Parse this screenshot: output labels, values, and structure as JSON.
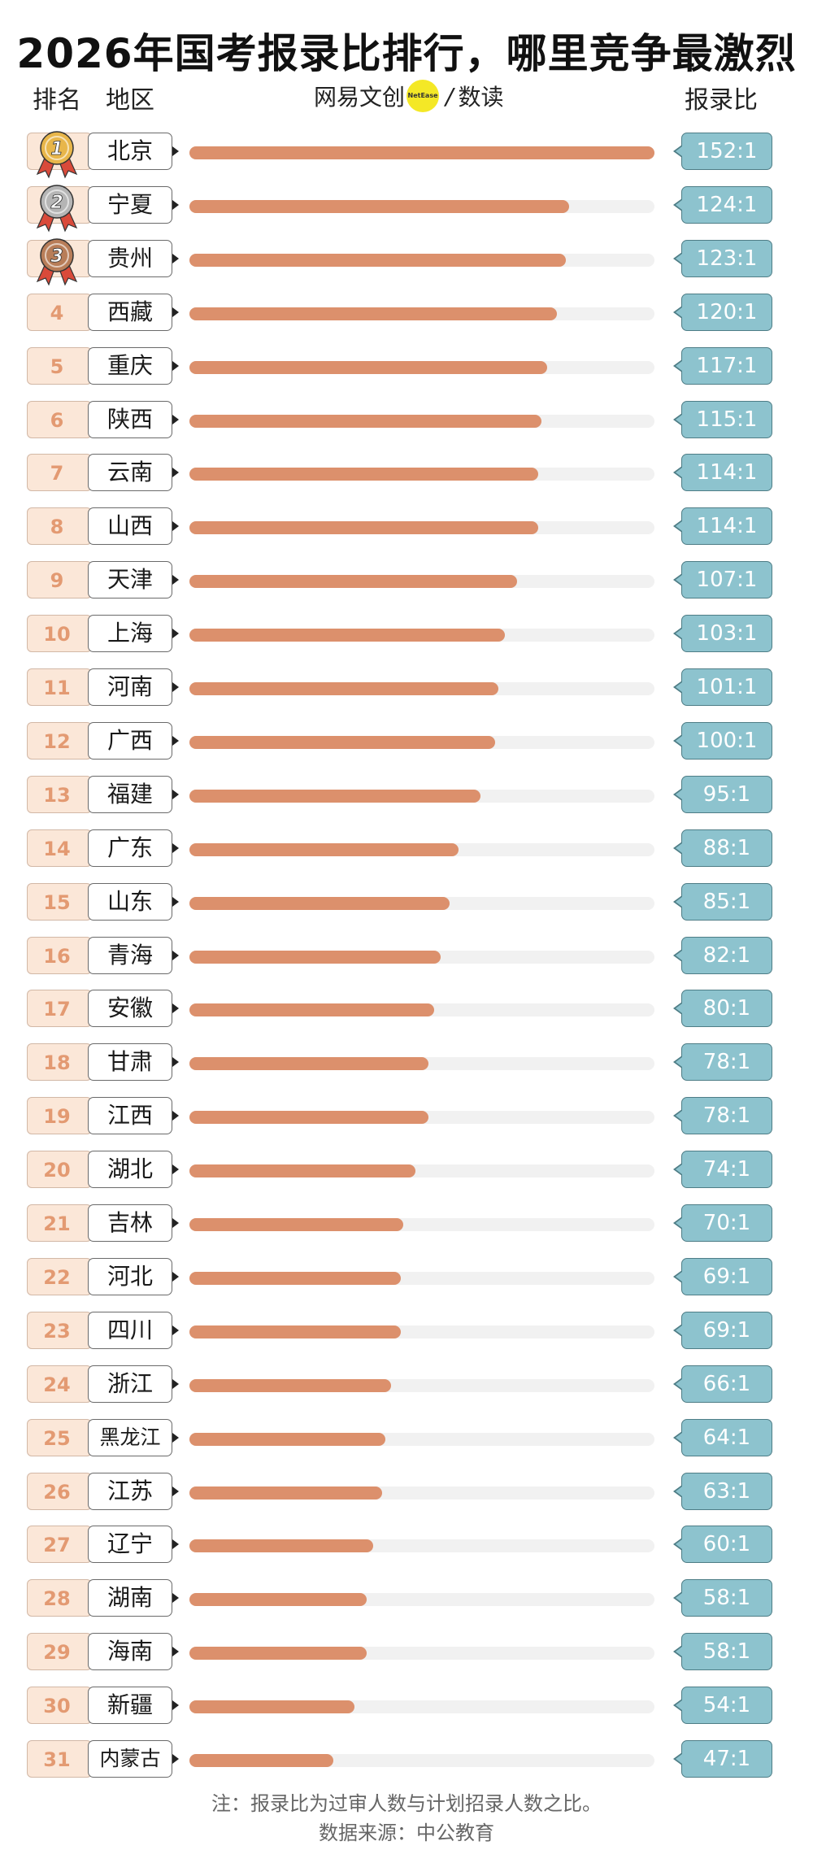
{
  "title": "2026年国考报录比排行，哪里竞争最激烈",
  "headers": {
    "rank": "排名",
    "region": "地区",
    "ratio": "报录比"
  },
  "brand": {
    "left": "网易文创",
    "badge": "NetEase",
    "right": "数读"
  },
  "footnotes": [
    "注：报录比为过审人数与计划招录人数之比。",
    "数据来源：中公教育"
  ],
  "colors": {
    "bar": "#dc906c",
    "track": "#f1f1f1",
    "ratio_box": "#8dc3ce",
    "rank_box": "#fbe7d8",
    "gold": "#e8b64a",
    "silver": "#b5b5b5",
    "bronze": "#b87d58",
    "ribbon": "#d94a3a"
  },
  "medals": [
    "gold-medal-icon",
    "silver-medal-icon",
    "bronze-medal-icon"
  ],
  "chart_data": {
    "type": "bar",
    "orientation": "horizontal",
    "categories": [
      "北京",
      "宁夏",
      "贵州",
      "西藏",
      "重庆",
      "陕西",
      "云南",
      "山西",
      "天津",
      "上海",
      "河南",
      "广西",
      "福建",
      "广东",
      "山东",
      "青海",
      "安徽",
      "甘肃",
      "江西",
      "湖北",
      "吉林",
      "河北",
      "四川",
      "浙江",
      "黑龙江",
      "江苏",
      "辽宁",
      "湖南",
      "海南",
      "新疆",
      "内蒙古"
    ],
    "values": [
      152,
      124,
      123,
      120,
      117,
      115,
      114,
      114,
      107,
      103,
      101,
      100,
      95,
      88,
      85,
      82,
      80,
      78,
      78,
      74,
      70,
      69,
      69,
      66,
      64,
      63,
      60,
      58,
      58,
      54,
      47
    ],
    "labels": [
      "152:1",
      "124:1",
      "123:1",
      "120:1",
      "117:1",
      "115:1",
      "114:1",
      "114:1",
      "107:1",
      "103:1",
      "101:1",
      "100:1",
      "95:1",
      "88:1",
      "85:1",
      "82:1",
      "80:1",
      "78:1",
      "78:1",
      "74:1",
      "70:1",
      "69:1",
      "69:1",
      "66:1",
      "64:1",
      "63:1",
      "60:1",
      "58:1",
      "58:1",
      "54:1",
      "47:1"
    ],
    "ranks": [
      "1",
      "2",
      "3",
      "4",
      "5",
      "6",
      "7",
      "8",
      "9",
      "10",
      "11",
      "12",
      "13",
      "14",
      "15",
      "16",
      "17",
      "18",
      "19",
      "20",
      "21",
      "22",
      "23",
      "24",
      "25",
      "26",
      "27",
      "28",
      "29",
      "30",
      "31"
    ],
    "xlim": [
      0,
      152
    ]
  }
}
